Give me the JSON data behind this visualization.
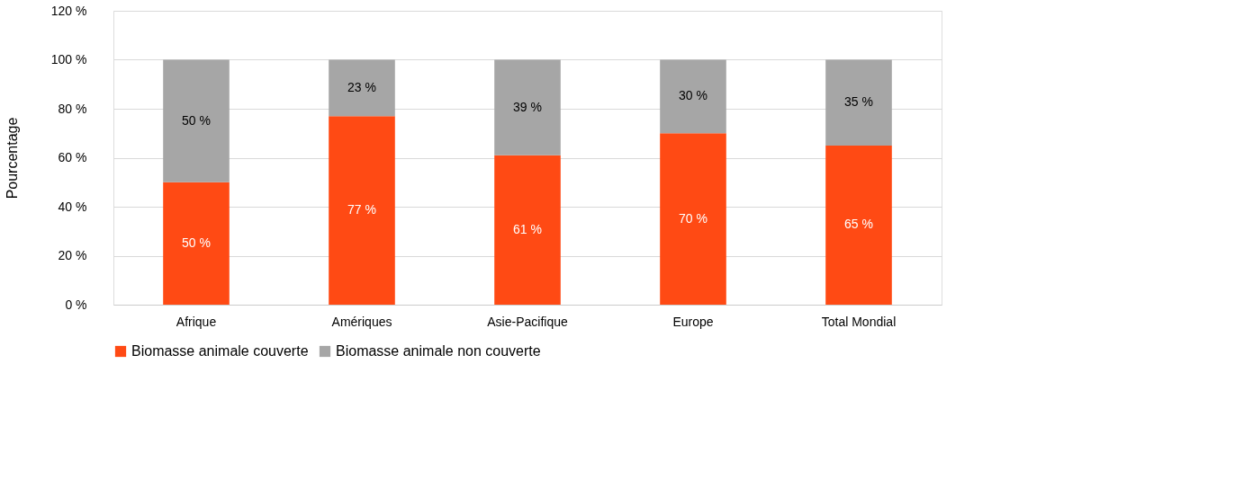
{
  "chart_data": {
    "type": "bar",
    "stacked": true,
    "ylabel": "Pourcentage",
    "categories": [
      "Afrique",
      "Amériques",
      "Asie-Pacifique",
      "Europe",
      "Total Mondial"
    ],
    "series": [
      {
        "name": "Biomasse animale couverte",
        "color": "#ff4a14",
        "values": [
          50,
          77,
          61,
          70,
          65
        ],
        "value_labels": [
          "50 %",
          "77 %",
          "61 %",
          "70 %",
          "65 %"
        ]
      },
      {
        "name": "Biomasse animale non couverte",
        "color": "#a6a6a6",
        "values": [
          50,
          23,
          39,
          30,
          35
        ],
        "value_labels": [
          "50 %",
          "23 %",
          "39 %",
          "30 %",
          "35 %"
        ]
      }
    ],
    "ylim": [
      0,
      120
    ],
    "yticks": [
      {
        "value": 0,
        "label": "0 %"
      },
      {
        "value": 20,
        "label": "20 %"
      },
      {
        "value": 40,
        "label": "40 %"
      },
      {
        "value": 60,
        "label": "60 %"
      },
      {
        "value": 80,
        "label": "80 %"
      },
      {
        "value": 100,
        "label": "100 %"
      },
      {
        "value": 120,
        "label": "120 %"
      }
    ],
    "grid": "y",
    "legend": "bottom"
  }
}
